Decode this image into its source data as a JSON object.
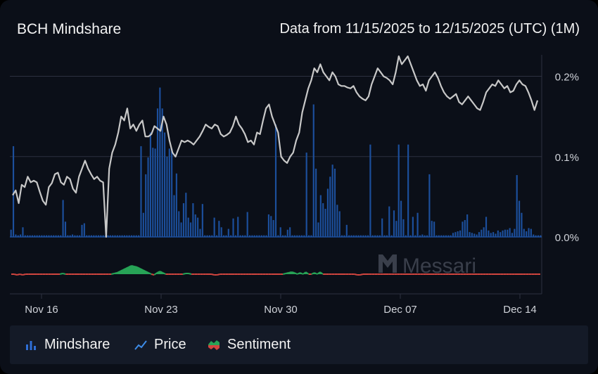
{
  "header": {
    "title": "BCH Mindshare",
    "range": "Data from 11/15/2025 to 12/15/2025 (UTC) (1M)"
  },
  "watermark": "Messari",
  "legend": {
    "mindshare": "Mindshare",
    "price": "Price",
    "sentiment": "Sentiment"
  },
  "colors": {
    "bar": "#1c4f9c",
    "price": "#c8c8c8",
    "sentiment_positive": "#27a356",
    "sentiment_negative": "#d2453f",
    "grid": "#2c3140",
    "background": "#0b0f18"
  },
  "chart_data": {
    "type": "bar",
    "title": "BCH Mindshare",
    "x_range": [
      "2025-11-15",
      "2025-12-15"
    ],
    "x_ticks": [
      "Nov 16",
      "Nov 23",
      "Nov 30",
      "Dec 07",
      "Dec 14"
    ],
    "y_ticks": [
      "0.0%",
      "0.1%",
      "0.2%"
    ],
    "ylim": [
      0,
      0.225
    ],
    "y_axis_position": "right",
    "grid": true,
    "legend_position": "bottom",
    "series": [
      {
        "name": "Mindshare",
        "type": "bar",
        "values": [
          0.009,
          0.113,
          0.003,
          0.002,
          0.003,
          0.012,
          0.002,
          0.002,
          0.002,
          0.002,
          0.002,
          0.002,
          0.002,
          0.002,
          0.002,
          0.002,
          0.002,
          0.002,
          0.002,
          0.002,
          0.002,
          0.002,
          0.046,
          0.019,
          0.002,
          0.002,
          0.003,
          0.002,
          0.002,
          0.002,
          0.015,
          0.017,
          0.002,
          0.002,
          0.002,
          0.002,
          0.002,
          0.002,
          0.002,
          0.002,
          0.002,
          0.002,
          0.002,
          0.002,
          0.002,
          0.002,
          0.002,
          0.002,
          0.002,
          0.002,
          0.002,
          0.002,
          0.002,
          0.002,
          0.002,
          0.113,
          0.03,
          0.078,
          0.099,
          0.13,
          0.111,
          0.11,
          0.16,
          0.186,
          0.16,
          0.13,
          0.1,
          0.11,
          0.11,
          0.052,
          0.079,
          0.032,
          0.018,
          0.042,
          0.055,
          0.024,
          0.018,
          0.042,
          0.028,
          0.024,
          0.01,
          0.041,
          0.002,
          0.002,
          0.002,
          0.002,
          0.024,
          0.002,
          0.02,
          0.012,
          0.002,
          0.002,
          0.01,
          0.002,
          0.023,
          0.002,
          0.025,
          0.002,
          0.002,
          0.002,
          0.031,
          0.002,
          0.002,
          0.002,
          0.002,
          0.002,
          0.002,
          0.002,
          0.002,
          0.028,
          0.026,
          0.021,
          0.14,
          0.002,
          0.012,
          0.002,
          0.002,
          0.009,
          0.012,
          0.002,
          0.002,
          0.002,
          0.002,
          0.002,
          0.002,
          0.105,
          0.002,
          0.002,
          0.165,
          0.085,
          0.018,
          0.052,
          0.042,
          0.035,
          0.06,
          0.075,
          0.09,
          0.085,
          0.04,
          0.032,
          0.002,
          0.002,
          0.015,
          0.002,
          0.002,
          0.002,
          0.002,
          0.002,
          0.002,
          0.002,
          0.002,
          0.002,
          0.115,
          0.002,
          0.002,
          0.002,
          0.002,
          0.023,
          0.002,
          0.002,
          0.038,
          0.002,
          0.033,
          0.02,
          0.115,
          0.045,
          0.022,
          0.002,
          0.115,
          0.002,
          0.025,
          0.002,
          0.03,
          0.002,
          0.003,
          0.002,
          0.002,
          0.078,
          0.02,
          0.019,
          0.002,
          0.002,
          0.002,
          0.002,
          0.002,
          0.002,
          0.002,
          0.005,
          0.006,
          0.007,
          0.008,
          0.019,
          0.021,
          0.028,
          0.006,
          0.005,
          0.004,
          0.003,
          0.006,
          0.009,
          0.012,
          0.025,
          0.008,
          0.005,
          0.006,
          0.004,
          0.008,
          0.006,
          0.008,
          0.009,
          0.009,
          0.011,
          0.005,
          0.01,
          0.077,
          0.045,
          0.03,
          0.01,
          0.007,
          0.011,
          0.01,
          0.003,
          0.002,
          0.002,
          0.002
        ]
      },
      {
        "name": "Price",
        "type": "line",
        "axis": "unlabeled",
        "values": [
          0.052,
          0.058,
          0.042,
          0.065,
          0.062,
          0.075,
          0.068,
          0.07,
          0.068,
          0.056,
          0.045,
          0.04,
          0.062,
          0.067,
          0.078,
          0.08,
          0.068,
          0.065,
          0.075,
          0.072,
          0.06,
          0.055,
          0.075,
          0.085,
          0.095,
          0.085,
          0.078,
          0.072,
          0.075,
          0.07,
          0.068,
          0.0,
          0.085,
          0.105,
          0.115,
          0.13,
          0.15,
          0.145,
          0.16,
          0.135,
          0.14,
          0.132,
          0.14,
          0.145,
          0.125,
          0.125,
          0.128,
          0.138,
          0.135,
          0.132,
          0.15,
          0.14,
          0.12,
          0.105,
          0.1,
          0.11,
          0.12,
          0.118,
          0.12,
          0.118,
          0.115,
          0.12,
          0.125,
          0.132,
          0.14,
          0.137,
          0.135,
          0.14,
          0.138,
          0.128,
          0.125,
          0.127,
          0.13,
          0.138,
          0.15,
          0.14,
          0.135,
          0.128,
          0.118,
          0.12,
          0.115,
          0.13,
          0.128,
          0.145,
          0.16,
          0.165,
          0.15,
          0.14,
          0.13,
          0.1,
          0.095,
          0.092,
          0.1,
          0.105,
          0.12,
          0.13,
          0.155,
          0.17,
          0.185,
          0.195,
          0.21,
          0.205,
          0.215,
          0.205,
          0.2,
          0.195,
          0.205,
          0.2,
          0.19,
          0.188,
          0.188,
          0.186,
          0.185,
          0.188,
          0.18,
          0.175,
          0.172,
          0.17,
          0.175,
          0.19,
          0.2,
          0.21,
          0.205,
          0.2,
          0.198,
          0.195,
          0.19,
          0.205,
          0.225,
          0.215,
          0.22,
          0.225,
          0.215,
          0.205,
          0.195,
          0.188,
          0.19,
          0.182,
          0.195,
          0.2,
          0.205,
          0.198,
          0.188,
          0.18,
          0.175,
          0.172,
          0.175,
          0.178,
          0.168,
          0.165,
          0.17,
          0.175,
          0.17,
          0.165,
          0.16,
          0.158,
          0.168,
          0.18,
          0.185,
          0.19,
          0.188,
          0.195,
          0.19,
          0.185,
          0.188,
          0.18,
          0.182,
          0.19,
          0.195,
          0.19,
          0.188,
          0.18,
          0.17,
          0.158,
          0.17
        ]
      },
      {
        "name": "Sentiment",
        "type": "area",
        "axis": "unlabeled",
        "values": [
          0,
          0,
          -0.5,
          0,
          -0.5,
          0,
          0,
          0,
          0,
          0,
          0,
          0,
          0,
          0,
          0,
          0,
          0,
          0,
          0.5,
          0,
          0,
          0,
          0,
          0,
          0,
          0,
          0,
          0,
          0,
          0,
          0,
          0,
          0,
          0,
          0,
          0,
          0.5,
          1,
          2,
          3,
          4,
          5,
          6,
          5.5,
          5,
          4,
          3,
          2,
          1,
          0,
          -0.5,
          1,
          2,
          1,
          0,
          0,
          0,
          0,
          0,
          0,
          0,
          0.5,
          0.5,
          0,
          0,
          0,
          0,
          0,
          0,
          0,
          0,
          -0.5,
          -0.5,
          0,
          0,
          0,
          0,
          0,
          0,
          0,
          0,
          0,
          0,
          0,
          0,
          0,
          0,
          0,
          0,
          0,
          0,
          0,
          0,
          0,
          0,
          0,
          0.5,
          1,
          1.5,
          1,
          0,
          1,
          0,
          1.5,
          0,
          0,
          1,
          0,
          1.5,
          0,
          0,
          0,
          0,
          0,
          0,
          0,
          0,
          0,
          0,
          0,
          0,
          -0.5,
          -0.5,
          0,
          0,
          0,
          0,
          0,
          0,
          0,
          0,
          0,
          0,
          0,
          0,
          0,
          0,
          0,
          0,
          0,
          0,
          0,
          0,
          0,
          0,
          0,
          0,
          0,
          0,
          0,
          0,
          0,
          0,
          0,
          0,
          0,
          0,
          0,
          0,
          0,
          0,
          0,
          0,
          0,
          0,
          0,
          0,
          0,
          0,
          0,
          0,
          0,
          0,
          0,
          0,
          0,
          0,
          0,
          0,
          0,
          0,
          0,
          0,
          0,
          0,
          0
        ]
      }
    ]
  }
}
